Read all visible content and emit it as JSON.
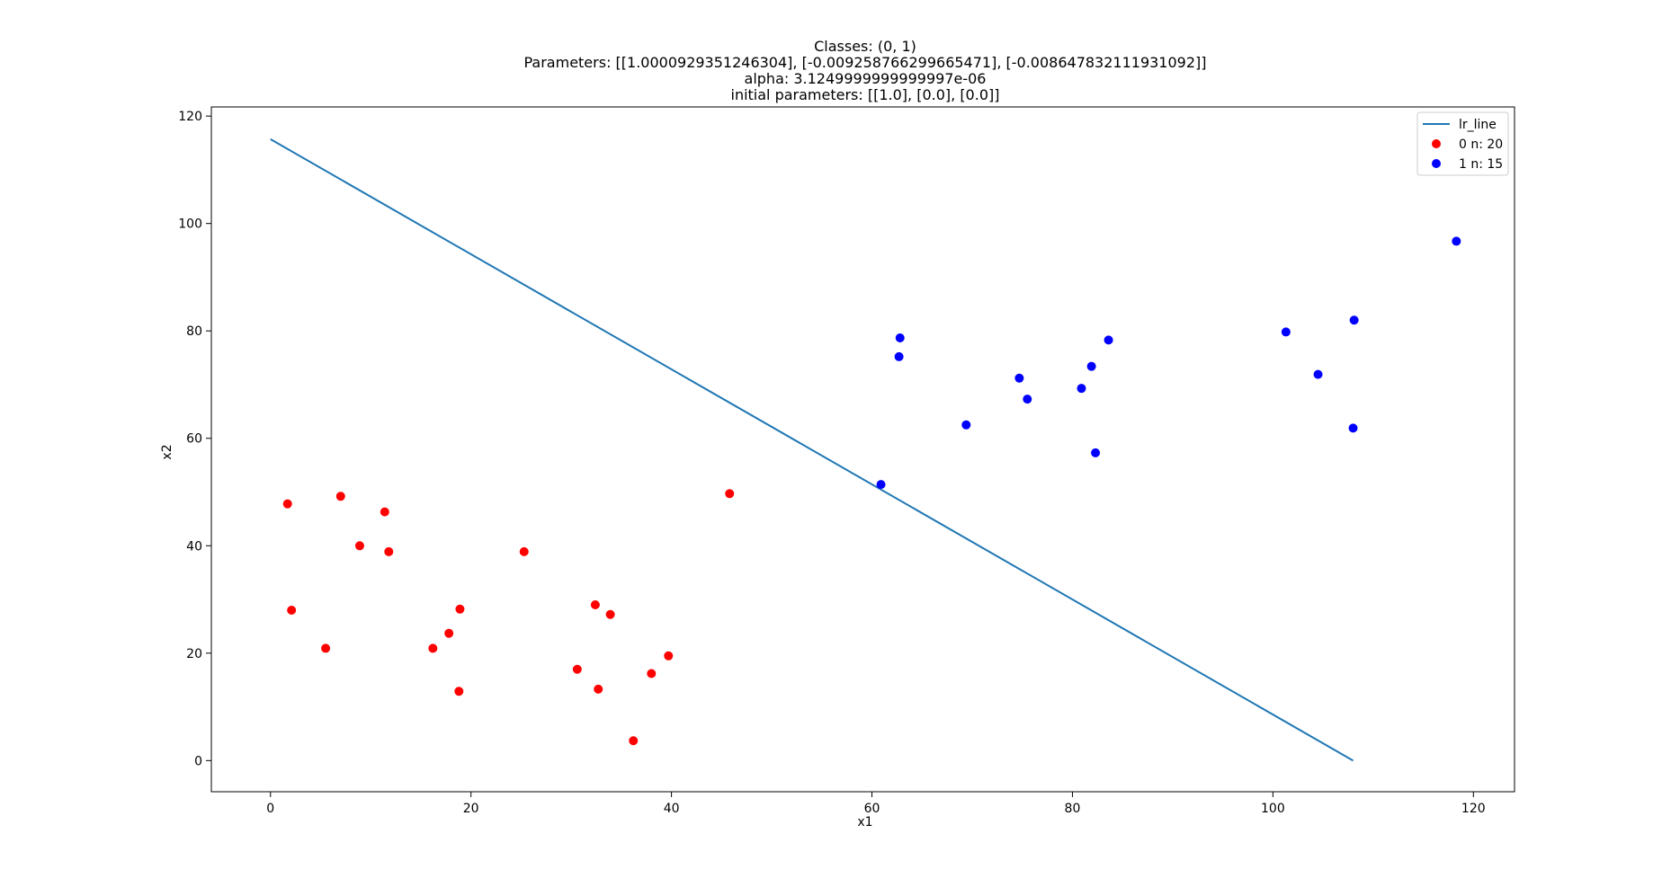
{
  "chart_data": {
    "type": "scatter",
    "title_lines": [
      "Classes: (0, 1)",
      "Parameters: [[1.0000929351246304], [-0.009258766299665471], [-0.008647832111931092]]",
      "alpha: 3.1249999999999997e-06",
      "initial parameters: [[1.0], [0.0], [0.0]]"
    ],
    "xlabel": "x1",
    "ylabel": "x2",
    "xlim": [
      -5.9,
      124.1
    ],
    "ylim": [
      -5.8,
      121.7
    ],
    "xticks": [
      0,
      20,
      40,
      60,
      80,
      100,
      120
    ],
    "yticks": [
      0,
      20,
      40,
      60,
      80,
      100,
      120
    ],
    "grid": false,
    "legend_position": "top-right",
    "line": {
      "name": "lr_line",
      "color": "#1f77b4",
      "x": [
        0,
        108.0
      ],
      "y": [
        115.7,
        0
      ]
    },
    "series": [
      {
        "name": "0 n: 20",
        "color": "#ff0000",
        "points": [
          [
            1.7,
            47.8
          ],
          [
            7.0,
            49.2
          ],
          [
            11.4,
            46.3
          ],
          [
            8.9,
            40.0
          ],
          [
            11.8,
            38.9
          ],
          [
            2.1,
            28.0
          ],
          [
            5.5,
            20.9
          ],
          [
            18.9,
            28.2
          ],
          [
            17.8,
            23.7
          ],
          [
            16.2,
            20.9
          ],
          [
            18.8,
            12.9
          ],
          [
            25.3,
            38.9
          ],
          [
            32.4,
            29.0
          ],
          [
            33.9,
            27.2
          ],
          [
            30.6,
            17.0
          ],
          [
            32.7,
            13.3
          ],
          [
            38.0,
            16.2
          ],
          [
            39.7,
            19.5
          ],
          [
            36.2,
            3.7
          ],
          [
            45.8,
            49.7
          ]
        ]
      },
      {
        "name": "1 n: 15",
        "color": "#0000ff",
        "points": [
          [
            60.9,
            51.4
          ],
          [
            62.8,
            78.7
          ],
          [
            62.7,
            75.2
          ],
          [
            69.4,
            62.5
          ],
          [
            74.7,
            71.2
          ],
          [
            75.5,
            67.3
          ],
          [
            80.9,
            69.3
          ],
          [
            81.9,
            73.4
          ],
          [
            82.3,
            57.3
          ],
          [
            83.6,
            78.3
          ],
          [
            101.3,
            79.8
          ],
          [
            104.5,
            71.9
          ],
          [
            108.1,
            82.0
          ],
          [
            108.0,
            61.9
          ],
          [
            118.3,
            96.7
          ]
        ]
      }
    ]
  }
}
